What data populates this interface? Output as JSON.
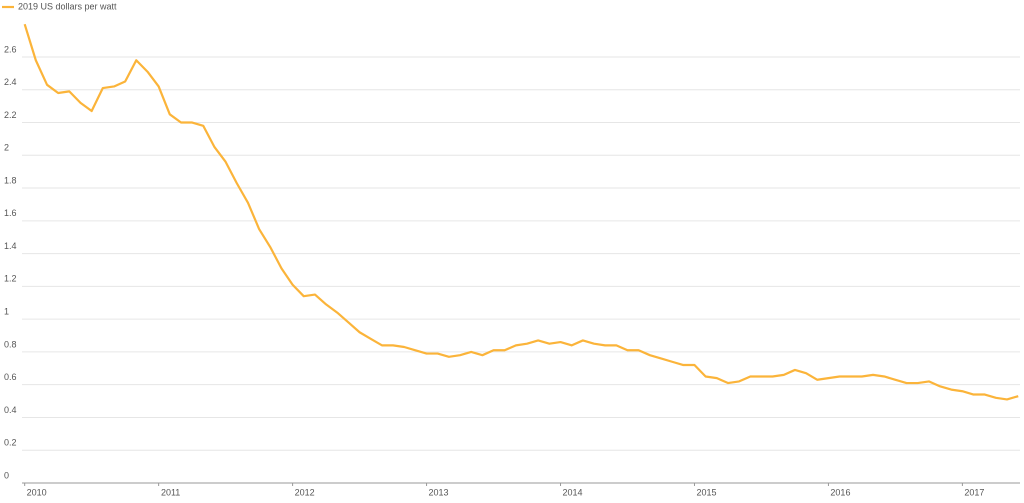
{
  "chart_data": {
    "type": "line",
    "series": [
      {
        "name": "2019 US dollars per watt",
        "color": "#fbb43a",
        "values": [
          2.8,
          2.58,
          2.43,
          2.38,
          2.39,
          2.32,
          2.27,
          2.41,
          2.42,
          2.45,
          2.58,
          2.51,
          2.42,
          2.25,
          2.2,
          2.2,
          2.18,
          2.05,
          1.96,
          1.83,
          1.71,
          1.55,
          1.44,
          1.31,
          1.21,
          1.14,
          1.15,
          1.09,
          1.04,
          0.98,
          0.92,
          0.88,
          0.84,
          0.84,
          0.83,
          0.81,
          0.79,
          0.79,
          0.77,
          0.78,
          0.8,
          0.78,
          0.81,
          0.81,
          0.84,
          0.85,
          0.87,
          0.85,
          0.86,
          0.84,
          0.87,
          0.85,
          0.84,
          0.84,
          0.81,
          0.81,
          0.78,
          0.76,
          0.74,
          0.72,
          0.72,
          0.65,
          0.64,
          0.61,
          0.62,
          0.65,
          0.65,
          0.65,
          0.66,
          0.69,
          0.67,
          0.63,
          0.64,
          0.65,
          0.65,
          0.65,
          0.66,
          0.65,
          0.63,
          0.61,
          0.61,
          0.62,
          0.59,
          0.57,
          0.56,
          0.54,
          0.54,
          0.52,
          0.51,
          0.53
        ]
      }
    ],
    "x": [
      2010,
      2010.083,
      2010.167,
      2010.25,
      2010.333,
      2010.417,
      2010.5,
      2010.583,
      2010.667,
      2010.75,
      2010.833,
      2010.917,
      2011,
      2011.083,
      2011.167,
      2011.25,
      2011.333,
      2011.417,
      2011.5,
      2011.583,
      2011.667,
      2011.75,
      2011.833,
      2011.917,
      2012,
      2012.083,
      2012.167,
      2012.25,
      2012.333,
      2012.417,
      2012.5,
      2012.583,
      2012.667,
      2012.75,
      2012.833,
      2012.917,
      2013,
      2013.083,
      2013.167,
      2013.25,
      2013.333,
      2013.417,
      2013.5,
      2013.583,
      2013.667,
      2013.75,
      2013.833,
      2013.917,
      2014,
      2014.083,
      2014.167,
      2014.25,
      2014.333,
      2014.417,
      2014.5,
      2014.583,
      2014.667,
      2014.75,
      2014.833,
      2014.917,
      2015,
      2015.083,
      2015.167,
      2015.25,
      2015.333,
      2015.417,
      2015.5,
      2015.583,
      2015.667,
      2015.75,
      2015.833,
      2015.917,
      2016,
      2016.083,
      2016.167,
      2016.25,
      2016.333,
      2016.417,
      2016.5,
      2016.583,
      2016.667,
      2016.75,
      2016.833,
      2016.917,
      2017,
      2017.083,
      2017.167,
      2017.25,
      2017.333,
      2017.417
    ],
    "xlim": [
      2009.98,
      2017.43
    ],
    "xticks": [
      2010,
      2011,
      2012,
      2013,
      2014,
      2015,
      2016,
      2017
    ],
    "ylim": [
      0,
      2.85
    ],
    "yticks": [
      0,
      0.2,
      0.4,
      0.6,
      0.8,
      1,
      1.2,
      1.4,
      1.6,
      1.8,
      2,
      2.2,
      2.4,
      2.6
    ],
    "grid": true,
    "legend": "top-left"
  }
}
